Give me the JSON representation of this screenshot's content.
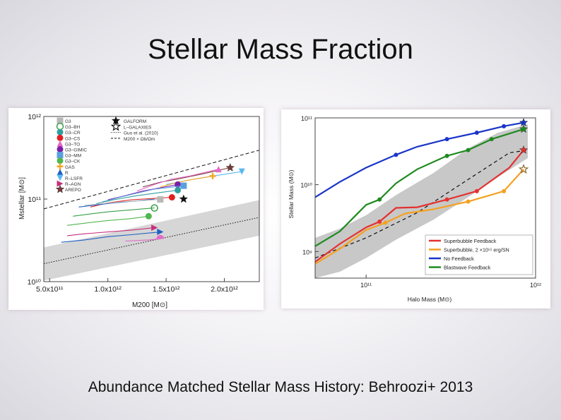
{
  "slide": {
    "title": "Stellar Mass Fraction",
    "caption": "Abundance Matched Stellar Mass History: Behroozi+ 2013"
  },
  "chart_data": [
    {
      "type": "line",
      "xscale": "linear",
      "yscale": "log",
      "xlabel": "M200 [M⊙]",
      "ylabel": "Mstellar [M⊙]",
      "xlim": [
        450000000000,
        2300000000000
      ],
      "ylim": [
        10000000000,
        1000000000000
      ],
      "x_ticks": [
        {
          "value": 500000000000,
          "label": "5.0x10¹¹"
        },
        {
          "value": 1000000000000,
          "label": "1.0x10¹²"
        },
        {
          "value": 1500000000000,
          "label": "1.5x10¹²"
        },
        {
          "value": 2000000000000,
          "label": "2.0x10¹²"
        }
      ],
      "y_ticks": [
        {
          "value": 10000000000,
          "label": "10¹⁰"
        },
        {
          "value": 100000000000,
          "label": "10¹¹"
        },
        {
          "value": 1000000000000,
          "label": "10¹²"
        }
      ],
      "legend": {
        "placement": "top-left",
        "codes": [
          "G3",
          "G3–BH",
          "G3–CR",
          "G3–CS",
          "G3–TO",
          "G3–GIMIC",
          "G3–MM",
          "G3–CK",
          "GAS",
          "R",
          "R–LSFR",
          "R–AGN",
          "AREPO"
        ],
        "colors": [
          "#b8b8b8",
          "#3aa04a",
          "#2f9fa0",
          "#e02020",
          "#e36ac8",
          "#7a1fa8",
          "#5a9fe0",
          "#4fb84f",
          "#f5a623",
          "#1f5fc4",
          "#5bb8f0",
          "#c8307a",
          "#7a3a3a"
        ],
        "markers": [
          "square",
          "circle-open",
          "circle",
          "circle",
          "triangle",
          "circle",
          "square",
          "circle",
          "plus",
          "triangle",
          "triangle-down",
          "triangle-right",
          "star"
        ],
        "right_entries": [
          {
            "label": "GALFORM",
            "marker": "star-filled",
            "color": "#111111"
          },
          {
            "label": "L–GALAXIES",
            "marker": "star-open",
            "color": "#111111"
          },
          {
            "label": "Guo et al. (2010)",
            "style": "dotted",
            "color": "#111111"
          },
          {
            "label": "M200 × Ωb/Ωm",
            "style": "dashed",
            "color": "#111111"
          }
        ]
      },
      "reference_lines": [
        {
          "name": "M200 × Ωb/Ωm",
          "style": "dashed",
          "x": [
            450000000000,
            2300000000000
          ],
          "y": [
            76000000000,
            390000000000
          ]
        },
        {
          "name": "Guo et al. (2010)",
          "style": "dotted",
          "x": [
            450000000000,
            2300000000000
          ],
          "y": [
            16500000000,
            60000000000
          ]
        }
      ],
      "band": {
        "x": [
          450000000000,
          2300000000000
        ],
        "y_low": [
          10300000000,
          36000000000
        ],
        "y_high": [
          26000000000,
          97000000000
        ],
        "color": "#d6d6d6"
      },
      "series": [
        {
          "code": "AREPO",
          "color": "#7a3a3a",
          "x": [
            1300000000000,
            1450000000000,
            1600000000000,
            1800000000000,
            2050000000000
          ],
          "y": [
            140000000000,
            160000000000,
            175000000000,
            200000000000,
            240000000000
          ],
          "end_marker": "star"
        },
        {
          "code": "G3–TO",
          "color": "#e36ac8",
          "x": [
            1250000000000,
            1400000000000,
            1550000000000,
            1700000000000,
            1950000000000
          ],
          "y": [
            125000000000,
            150000000000,
            175000000000,
            190000000000,
            230000000000
          ],
          "end_marker": "triangle"
        },
        {
          "code": "R–LSFR",
          "color": "#5bb8f0",
          "x": [
            1500000000000,
            1700000000000,
            1900000000000,
            2150000000000
          ],
          "y": [
            150000000000,
            170000000000,
            190000000000,
            215000000000
          ],
          "end_marker": "triangle-down"
        },
        {
          "code": "GAS",
          "color": "#f5a623",
          "x": [
            1450000000000,
            1600000000000,
            1750000000000,
            1900000000000
          ],
          "y": [
            140000000000,
            160000000000,
            175000000000,
            190000000000
          ],
          "end_marker": "plus"
        },
        {
          "code": "G3–GIMIC",
          "color": "#7a1fa8",
          "x": [
            1000000000000,
            1150000000000,
            1300000000000,
            1450000000000,
            1600000000000
          ],
          "y": [
            98000000000,
            110000000000,
            125000000000,
            137000000000,
            150000000000
          ],
          "end_marker": "circle"
        },
        {
          "code": "G3–MM",
          "color": "#5a9fe0",
          "x": [
            950000000000,
            1100000000000,
            1250000000000,
            1400000000000,
            1650000000000
          ],
          "y": [
            92000000000,
            105000000000,
            118000000000,
            132000000000,
            145000000000
          ],
          "end_marker": "square"
        },
        {
          "code": "G3–CR",
          "color": "#2f9fa0",
          "x": [
            900000000000,
            1050000000000,
            1250000000000,
            1450000000000,
            1600000000000
          ],
          "y": [
            88000000000,
            98000000000,
            110000000000,
            120000000000,
            128000000000
          ],
          "end_marker": "circle"
        },
        {
          "code": "G3–CS",
          "color": "#e02020",
          "x": [
            850000000000,
            1000000000000,
            1200000000000,
            1400000000000,
            1550000000000
          ],
          "y": [
            80000000000,
            90000000000,
            98000000000,
            102000000000,
            105000000000
          ],
          "end_marker": "circle"
        },
        {
          "code": "R",
          "color": "#1f5fc4",
          "x": [
            750000000000,
            900000000000,
            1050000000000,
            1250000000000,
            1400000000000
          ],
          "y": [
            80000000000,
            85000000000,
            90000000000,
            95000000000,
            100000000000
          ],
          "end_marker": "none"
        },
        {
          "code": "G3",
          "color": "#b8b8b8",
          "x": [
            800000000000,
            950000000000,
            1100000000000,
            1300000000000,
            1450000000000
          ],
          "y": [
            84000000000,
            88000000000,
            92000000000,
            96000000000,
            99000000000
          ],
          "end_marker": "square"
        },
        {
          "code": "G3–BH",
          "color": "#3aa04a",
          "x": [
            700000000000,
            850000000000,
            1000000000000,
            1200000000000,
            1400000000000
          ],
          "y": [
            62000000000,
            66000000000,
            70000000000,
            74000000000,
            78000000000
          ],
          "end_marker": "circle-open"
        },
        {
          "code": "G3–CK",
          "color": "#4fb84f",
          "x": [
            650000000000,
            800000000000,
            1000000000000,
            1200000000000,
            1350000000000
          ],
          "y": [
            48000000000,
            51000000000,
            55000000000,
            58000000000,
            62000000000
          ],
          "end_marker": "circle"
        },
        {
          "code": "R–AGN",
          "color": "#c8307a",
          "x": [
            650000000000,
            800000000000,
            1000000000000,
            1200000000000,
            1400000000000
          ],
          "y": [
            36000000000,
            38000000000,
            40000000000,
            42000000000,
            45000000000
          ],
          "end_marker": "triangle-right"
        },
        {
          "code": "R",
          "color": "#1f5fc4",
          "x": [
            600000000000,
            800000000000,
            1000000000000,
            1200000000000,
            1450000000000
          ],
          "y": [
            30000000000,
            32000000000,
            35000000000,
            37000000000,
            40000000000
          ],
          "end_marker": "triangle-right"
        },
        {
          "code": "G3–TO",
          "color": "#e36ac8",
          "x": [
            1150000000000,
            1250000000000,
            1350000000000,
            1450000000000
          ],
          "y": [
            31000000000,
            31500000000,
            32000000000,
            33000000000
          ],
          "end_marker": "half-circle"
        },
        {
          "code": "GALFORM",
          "color": "#111111",
          "x": [
            1650000000000
          ],
          "y": [
            100000000000
          ],
          "end_marker": "star-filled"
        }
      ]
    },
    {
      "type": "line",
      "xscale": "log",
      "yscale": "log",
      "xlabel": "Halo Mass (M⊙)",
      "ylabel": "Stellar Mass (M⊙)",
      "xlim": [
        50000000000,
        1000000000000
      ],
      "ylim": [
        400000000,
        100000000000
      ],
      "x_ticks": [
        {
          "value": 100000000000,
          "label": "10¹¹"
        },
        {
          "value": 1000000000000,
          "label": "10¹²"
        }
      ],
      "y_ticks": [
        {
          "value": 1000000000,
          "label": "10⁹"
        },
        {
          "value": 10000000000,
          "label": "10¹⁰"
        },
        {
          "value": 100000000000,
          "label": "10¹¹"
        }
      ],
      "band": {
        "x": [
          50000000000,
          70000000000,
          100000000000,
          150000000000,
          250000000000,
          400000000000,
          600000000000,
          900000000000
        ],
        "y_low": [
          400000000,
          500000000,
          800000000,
          1500000000,
          3000000000,
          6500000000,
          13000000000,
          25000000000
        ],
        "y_high": [
          1600000000,
          2200000000,
          3500000000,
          7000000000,
          15000000000,
          35000000000,
          60000000000,
          80000000000
        ],
        "color": "#c8c8c8"
      },
      "reference_line": {
        "style": "dashed",
        "color": "#111111",
        "x": [
          50000000000,
          100000000000,
          200000000000,
          400000000000,
          700000000000,
          900000000000
        ],
        "y": [
          800000000,
          1600000000,
          3800000000,
          12000000000,
          30000000000,
          33000000000
        ]
      },
      "legend": {
        "placement": "bottom-right"
      },
      "series": [
        {
          "name": "Superbubble Feedback",
          "color": "#e53030",
          "x": [
            50000000000,
            70000000000,
            100000000000,
            120000000000,
            150000000000,
            200000000000,
            300000000000,
            450000000000,
            700000000000,
            850000000000
          ],
          "y": [
            700000000,
            1300000000,
            2300000000,
            2800000000,
            4500000000,
            4600000000,
            6000000000,
            8000000000,
            18000000000,
            33000000000
          ],
          "markers_at": [
            120000000000,
            300000000000,
            450000000000,
            850000000000
          ],
          "end_marker": "star"
        },
        {
          "name": "Superbubble, 2 ×10⁵¹ erg/SN",
          "color": "#f5a020",
          "x": [
            50000000000,
            70000000000,
            100000000000,
            130000000000,
            170000000000,
            250000000000,
            400000000000,
            650000000000,
            850000000000
          ],
          "y": [
            650000000,
            1100000000,
            2100000000,
            2700000000,
            3700000000,
            4300000000,
            5600000000,
            8000000000,
            17000000000
          ],
          "markers_at": [
            130000000000,
            400000000000,
            650000000000
          ],
          "end_marker": "star-open"
        },
        {
          "name": "No Feedback",
          "color": "#1a35c8",
          "x": [
            50000000000,
            70000000000,
            100000000000,
            150000000000,
            200000000000,
            300000000000,
            450000000000,
            650000000000,
            850000000000
          ],
          "y": [
            6500000000,
            11000000000,
            18000000000,
            28000000000,
            37000000000,
            48000000000,
            60000000000,
            75000000000,
            85000000000
          ],
          "markers_at": [
            150000000000,
            300000000000,
            450000000000,
            650000000000
          ],
          "end_marker": "star"
        },
        {
          "name": "Blastwave Feedback",
          "color": "#1f8a1f",
          "x": [
            50000000000,
            70000000000,
            100000000000,
            120000000000,
            150000000000,
            200000000000,
            300000000000,
            400000000000,
            550000000000,
            850000000000
          ],
          "y": [
            1200000000,
            2000000000,
            5000000000,
            6000000000,
            10500000000,
            17000000000,
            27000000000,
            33000000000,
            48000000000,
            68000000000
          ],
          "markers_at": [
            120000000000,
            300000000000,
            400000000000,
            550000000000
          ],
          "end_marker": "star"
        }
      ]
    }
  ]
}
